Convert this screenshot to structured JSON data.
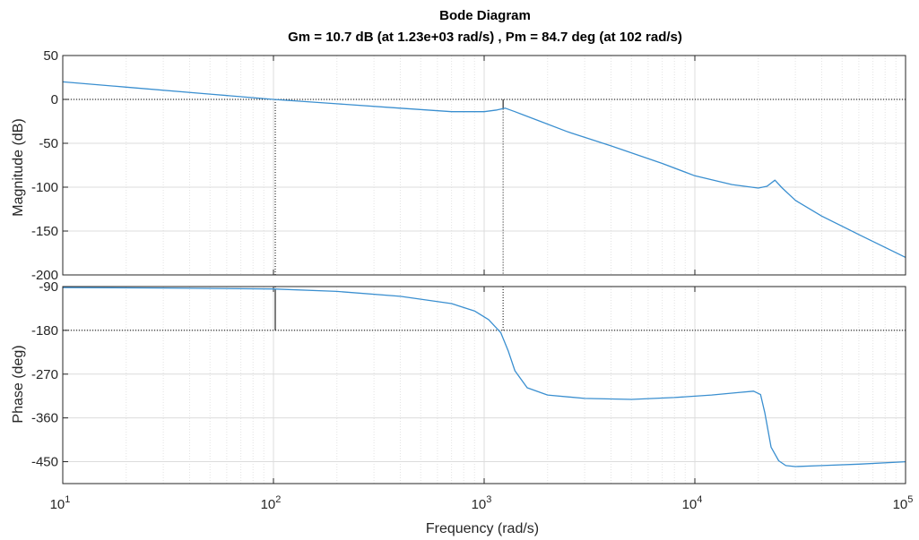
{
  "chart_data": {
    "type": "line",
    "title": "Bode Diagram",
    "subtitle": "Gm = 10.7 dB (at 1.23e+03 rad/s) ,  Pm = 84.7 deg (at 102 rad/s)",
    "xlabel": "Frequency  (rad/s)",
    "xscale": "log",
    "xlim": [
      10,
      100000
    ],
    "x_ticks": [
      {
        "v": 10,
        "base": "10",
        "exp": "1"
      },
      {
        "v": 100,
        "base": "10",
        "exp": "2"
      },
      {
        "v": 1000,
        "base": "10",
        "exp": "3"
      },
      {
        "v": 10000,
        "base": "10",
        "exp": "4"
      },
      {
        "v": 100000,
        "base": "10",
        "exp": "5"
      }
    ],
    "grid": true,
    "color": "#3a8fd0",
    "gain_crossover_freq": 102,
    "phase_crossover_freq": 1230,
    "panels": [
      {
        "ylabel": "Magnitude (dB)",
        "ylim": [
          -200,
          50
        ],
        "y_ticks": [
          "50",
          "0",
          "-50",
          "-100",
          "-150",
          "-200"
        ],
        "y_tick_values": [
          50,
          0,
          -50,
          -100,
          -150,
          -200
        ],
        "reference_y": 0,
        "series": [
          {
            "x": [
              10,
              20,
              50,
              100,
              200,
              400,
              700,
              1000,
              1150,
              1260,
              1400,
              1800,
              2500,
              4000,
              7000,
              10000,
              15000,
              20000,
              22000,
              24000,
              26000,
              30000,
              40000,
              60000,
              100000
            ],
            "values": [
              20,
              14,
              6,
              0,
              -5,
              -10,
              -14,
              -14,
              -12,
              -10,
              -14,
              -24,
              -37,
              -53,
              -73,
              -87,
              -97,
              -101,
              -99,
              -92,
              -101,
              -115,
              -133,
              -154,
              -180
            ]
          }
        ]
      },
      {
        "ylabel": "Phase (deg)",
        "ylim": [
          -495,
          -90
        ],
        "y_ticks": [
          "-90",
          "-180",
          "-270",
          "-360",
          "-450"
        ],
        "y_tick_values": [
          -90,
          -180,
          -270,
          -360,
          -450
        ],
        "reference_y": -180,
        "series": [
          {
            "x": [
              10,
              30,
              100,
              200,
              400,
              700,
              900,
              1050,
              1200,
              1300,
              1400,
              1600,
              2000,
              3000,
              5000,
              8000,
              12000,
              16000,
              19000,
              20500,
              21500,
              23000,
              25000,
              27000,
              30000,
              40000,
              60000,
              100000
            ],
            "values": [
              -92,
              -93,
              -95,
              -100,
              -110,
              -125,
              -140,
              -158,
              -185,
              -222,
              -263,
              -298,
              -313,
              -320,
              -322,
              -318,
              -313,
              -308,
              -305,
              -312,
              -350,
              -420,
              -448,
              -458,
              -460,
              -458,
              -455,
              -450
            ]
          }
        ]
      }
    ]
  }
}
